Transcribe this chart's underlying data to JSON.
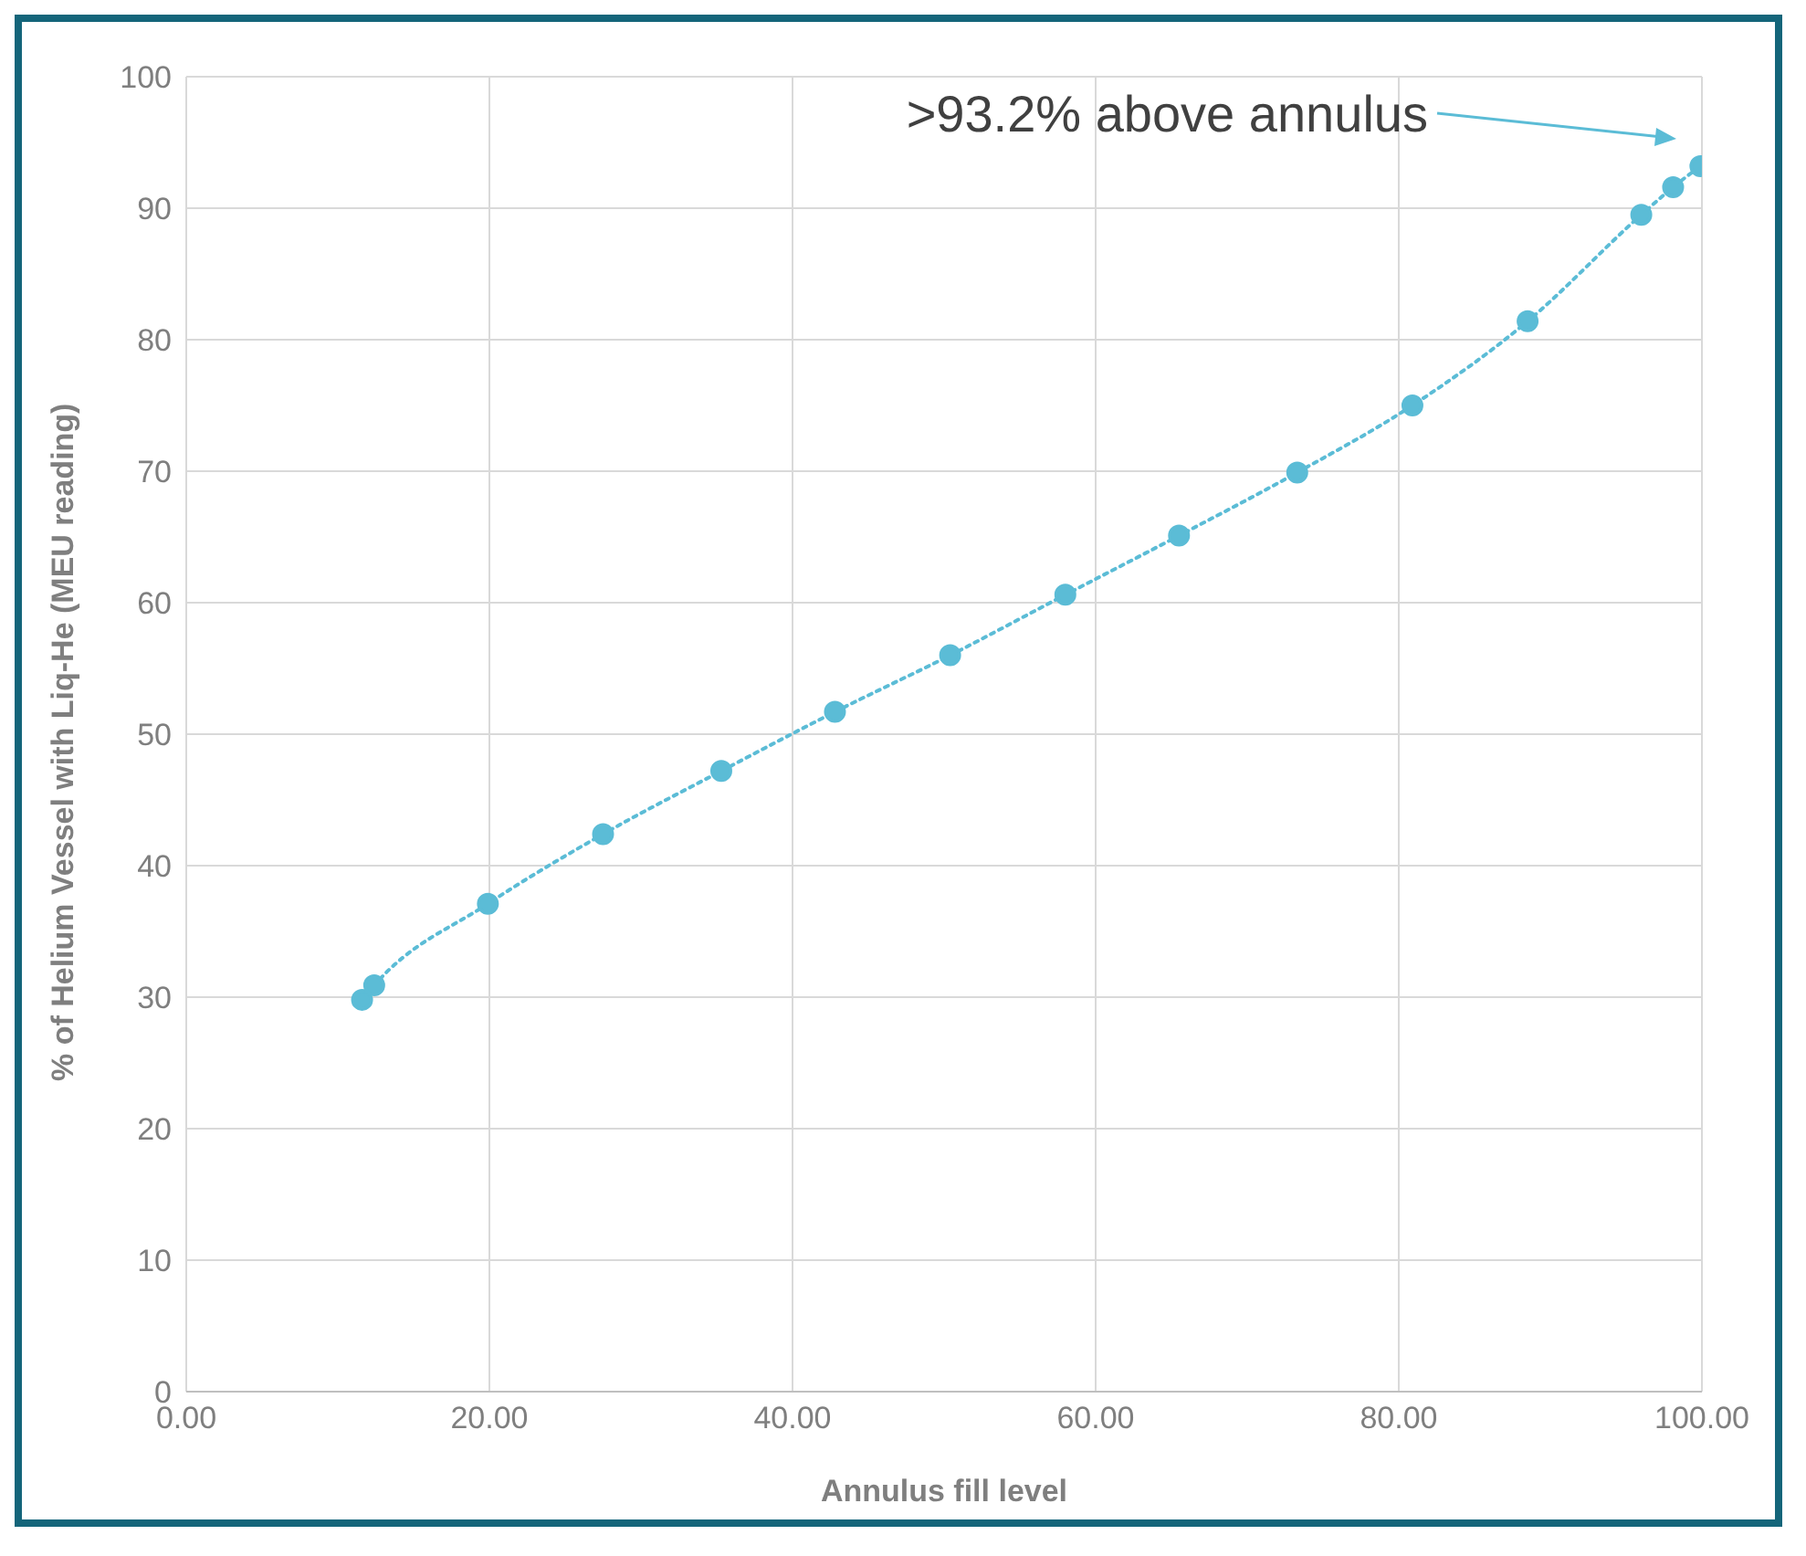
{
  "chart_data": {
    "type": "line",
    "xlabel": "Annulus fill level",
    "ylabel": "% of Helium Vessel with Liq-He (MEU reading)",
    "xlim": [
      0,
      100
    ],
    "xticks": [
      {
        "value": 0,
        "label": "0.00"
      },
      {
        "value": 20,
        "label": "20.00"
      },
      {
        "value": 40,
        "label": "40.00"
      },
      {
        "value": 60,
        "label": "60.00"
      },
      {
        "value": 80,
        "label": "80.00"
      },
      {
        "value": 100,
        "label": "100.00"
      }
    ],
    "ylim": [
      0,
      100
    ],
    "yticks": [
      0,
      10,
      20,
      30,
      40,
      50,
      60,
      70,
      80,
      90,
      100
    ],
    "grid": true,
    "legend": false,
    "marker": "circle",
    "line_style": "dotted",
    "annotations": [
      ">93.2% above annulus"
    ],
    "series": [
      {
        "color": "#5bbcd6",
        "x": [
          11.6,
          12.4,
          19.9,
          27.5,
          35.3,
          42.8,
          50.4,
          58.0,
          65.5,
          73.3,
          80.9,
          88.5,
          96.0,
          98.1,
          99.9
        ],
        "values": [
          29.8,
          30.9,
          37.1,
          42.4,
          47.2,
          51.7,
          56.0,
          60.6,
          65.1,
          69.9,
          75.0,
          81.4,
          89.5,
          91.6,
          93.2
        ]
      }
    ]
  }
}
